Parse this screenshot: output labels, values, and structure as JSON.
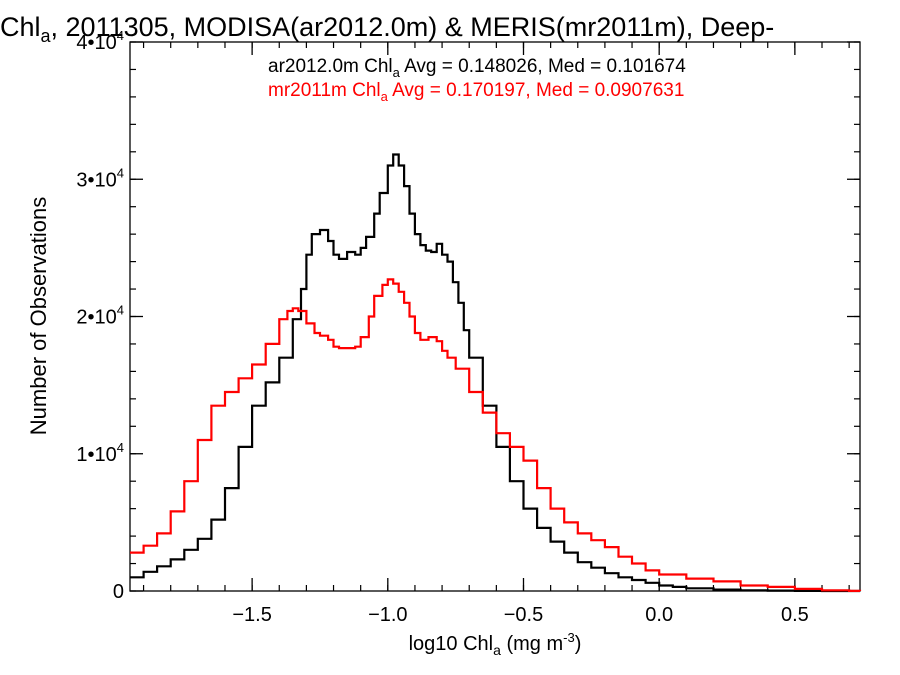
{
  "chart_data": {
    "type": "line",
    "title": {
      "pre": "Chl",
      "sub": "a",
      "post": ", 2011305, MODISA(ar2012.0m) & MERIS(mr2011m), Deep-"
    },
    "xlabel": {
      "pre": "log10 Chl",
      "sub": "a",
      "mid": " (mg m",
      "sup": "-3",
      "post": ")"
    },
    "ylabel": "Number of Observations",
    "xlim": [
      -1.95,
      0.74
    ],
    "ylim": [
      0,
      40000
    ],
    "x_ticks": [
      -1.5,
      -1.0,
      -0.5,
      0.0,
      0.5
    ],
    "x_tick_labels": [
      "−1.5",
      "−1.0",
      "−0.5",
      "0.0",
      "0.5"
    ],
    "y_ticks": [
      {
        "value": 0,
        "base": "0",
        "exp": ""
      },
      {
        "value": 10000,
        "base": "1•10",
        "exp": "4"
      },
      {
        "value": 20000,
        "base": "2•10",
        "exp": "4"
      },
      {
        "value": 30000,
        "base": "3•10",
        "exp": "4"
      },
      {
        "value": 40000,
        "base": "4•10",
        "exp": "4"
      }
    ],
    "grid": false,
    "legend_position": "top-right",
    "series": [
      {
        "name": "ar2012.0m",
        "legend": {
          "pre": "ar2012.0m Chl",
          "sub": "a",
          "post": " Avg = 0.148026, Med = 0.101674"
        },
        "color": "#000000",
        "x": [
          -1.95,
          -1.9,
          -1.85,
          -1.8,
          -1.75,
          -1.7,
          -1.65,
          -1.6,
          -1.55,
          -1.5,
          -1.45,
          -1.4,
          -1.35,
          -1.32,
          -1.3,
          -1.28,
          -1.25,
          -1.22,
          -1.2,
          -1.18,
          -1.15,
          -1.12,
          -1.1,
          -1.08,
          -1.05,
          -1.03,
          -1.0,
          -0.98,
          -0.96,
          -0.94,
          -0.92,
          -0.9,
          -0.88,
          -0.86,
          -0.84,
          -0.82,
          -0.8,
          -0.78,
          -0.76,
          -0.74,
          -0.72,
          -0.7,
          -0.65,
          -0.6,
          -0.55,
          -0.5,
          -0.45,
          -0.4,
          -0.35,
          -0.3,
          -0.25,
          -0.2,
          -0.15,
          -0.1,
          -0.05,
          0.0,
          0.05,
          0.1,
          0.2,
          0.3,
          0.4,
          0.5,
          0.6,
          0.7,
          0.74
        ],
        "y": [
          1000,
          1400,
          1800,
          2300,
          3000,
          3800,
          5200,
          7500,
          10500,
          13500,
          15200,
          17000,
          19800,
          22000,
          24500,
          26000,
          26300,
          25500,
          24500,
          24200,
          24700,
          24500,
          25000,
          25800,
          27500,
          29000,
          31000,
          31800,
          31000,
          29500,
          27500,
          26000,
          25200,
          24800,
          24700,
          25300,
          24500,
          24000,
          22500,
          21000,
          19000,
          17000,
          13500,
          10500,
          8000,
          6000,
          4600,
          3600,
          2800,
          2100,
          1700,
          1300,
          1000,
          800,
          600,
          400,
          300,
          200,
          100,
          50,
          30,
          10,
          0,
          0,
          0
        ]
      },
      {
        "name": "mr2011m",
        "legend": {
          "pre": "mr2011m Chl",
          "sub": "a",
          "post": " Avg = 0.170197, Med = 0.0907631"
        },
        "color": "#ff0000",
        "x": [
          -1.95,
          -1.9,
          -1.85,
          -1.8,
          -1.75,
          -1.7,
          -1.65,
          -1.6,
          -1.55,
          -1.5,
          -1.45,
          -1.4,
          -1.37,
          -1.35,
          -1.33,
          -1.3,
          -1.27,
          -1.25,
          -1.22,
          -1.2,
          -1.18,
          -1.15,
          -1.12,
          -1.1,
          -1.07,
          -1.05,
          -1.02,
          -1.0,
          -0.98,
          -0.96,
          -0.94,
          -0.92,
          -0.9,
          -0.88,
          -0.85,
          -0.82,
          -0.8,
          -0.78,
          -0.75,
          -0.7,
          -0.65,
          -0.6,
          -0.55,
          -0.5,
          -0.45,
          -0.4,
          -0.35,
          -0.3,
          -0.25,
          -0.2,
          -0.15,
          -0.1,
          -0.05,
          0.0,
          0.1,
          0.2,
          0.3,
          0.4,
          0.5,
          0.6,
          0.7,
          0.74
        ],
        "y": [
          2800,
          3300,
          4200,
          5800,
          8000,
          11000,
          13500,
          14500,
          15500,
          16500,
          18000,
          19800,
          20400,
          20600,
          20400,
          19500,
          18800,
          18600,
          18300,
          17800,
          17700,
          17700,
          17800,
          18500,
          20000,
          21500,
          22300,
          22700,
          22400,
          21800,
          21000,
          20000,
          18800,
          18300,
          18500,
          18200,
          17500,
          17000,
          16200,
          14500,
          13000,
          11500,
          10500,
          9500,
          7500,
          6000,
          5000,
          4200,
          3700,
          3200,
          2500,
          2000,
          1500,
          1200,
          900,
          700,
          400,
          300,
          150,
          50,
          10,
          0
        ]
      }
    ]
  }
}
